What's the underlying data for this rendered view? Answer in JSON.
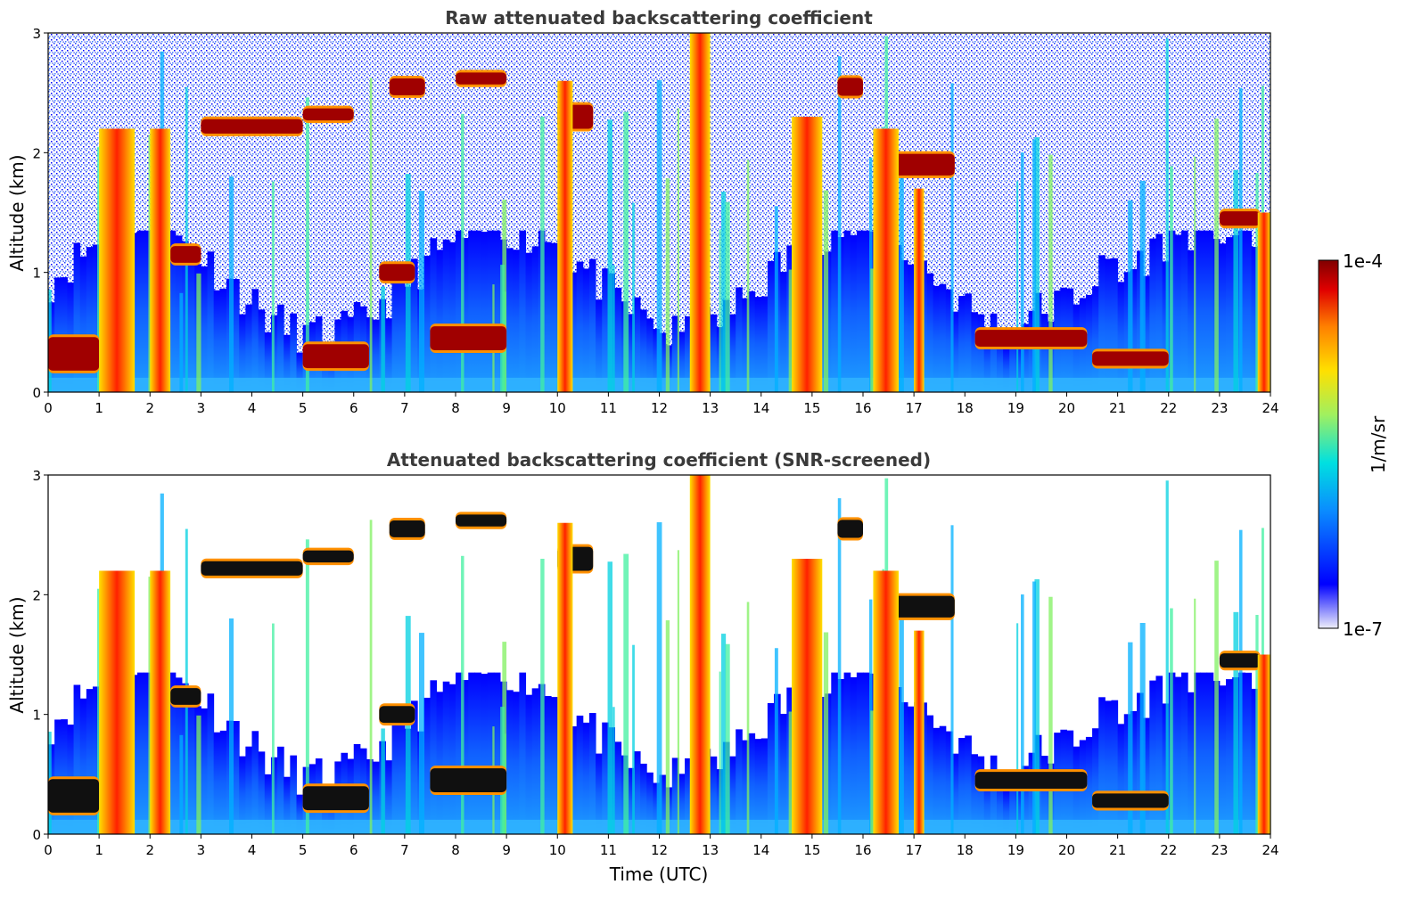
{
  "chart_data": [
    {
      "type": "heatmap",
      "title": "Raw attenuated backscattering coefficient",
      "xlabel": "",
      "ylabel": "Altitude (km)",
      "xlim": [
        0,
        24
      ],
      "ylim": [
        0,
        3
      ],
      "xticks": [
        "0",
        "1",
        "2",
        "3",
        "4",
        "5",
        "6",
        "7",
        "8",
        "9",
        "10",
        "11",
        "12",
        "13",
        "14",
        "15",
        "16",
        "17",
        "18",
        "19",
        "20",
        "21",
        "22",
        "23",
        "24"
      ],
      "yticks": [
        "0",
        "1",
        "2",
        "3"
      ],
      "layers": [
        {
          "x0": 3.0,
          "x1": 5.0,
          "y": 2.22,
          "h": 0.12
        },
        {
          "x0": 5.0,
          "x1": 6.0,
          "y": 2.32,
          "h": 0.1
        },
        {
          "x0": 6.7,
          "x1": 7.4,
          "y": 2.55,
          "h": 0.14
        },
        {
          "x0": 8.0,
          "x1": 9.0,
          "y": 2.62,
          "h": 0.1
        },
        {
          "x0": 2.4,
          "x1": 3.0,
          "y": 1.15,
          "h": 0.14
        },
        {
          "x0": 6.5,
          "x1": 7.2,
          "y": 1.0,
          "h": 0.14
        },
        {
          "x0": 0.0,
          "x1": 1.0,
          "y": 0.32,
          "h": 0.28
        },
        {
          "x0": 5.0,
          "x1": 6.3,
          "y": 0.3,
          "h": 0.2
        },
        {
          "x0": 7.5,
          "x1": 9.0,
          "y": 0.45,
          "h": 0.2
        },
        {
          "x0": 16.3,
          "x1": 17.8,
          "y": 1.9,
          "h": 0.18
        },
        {
          "x0": 18.2,
          "x1": 20.4,
          "y": 0.45,
          "h": 0.14
        },
        {
          "x0": 20.5,
          "x1": 22.0,
          "y": 0.28,
          "h": 0.12
        },
        {
          "x0": 23.0,
          "x1": 23.8,
          "y": 1.45,
          "h": 0.12
        },
        {
          "x0": 15.5,
          "x1": 16.0,
          "y": 2.55,
          "h": 0.15
        },
        {
          "x0": 10.0,
          "x1": 10.7,
          "y": 2.3,
          "h": 0.2
        }
      ],
      "columns": [
        {
          "x0": 1.0,
          "x1": 1.7,
          "top": 2.2
        },
        {
          "x0": 2.0,
          "x1": 2.4,
          "top": 2.2
        },
        {
          "x0": 14.6,
          "x1": 15.2,
          "top": 2.3
        },
        {
          "x0": 16.2,
          "x1": 16.7,
          "top": 2.2
        },
        {
          "x0": 17.0,
          "x1": 17.2,
          "top": 1.7
        },
        {
          "x0": 12.6,
          "x1": 13.0,
          "top": 3.0
        },
        {
          "x0": 23.75,
          "x1": 24.0,
          "top": 1.5
        },
        {
          "x0": 10.0,
          "x1": 10.3,
          "top": 2.6
        }
      ]
    },
    {
      "type": "heatmap",
      "title": "Attenuated backscattering coefficient (SNR-screened)",
      "xlabel": "Time (UTC)",
      "ylabel": "Altitude (km)",
      "xlim": [
        0,
        24
      ],
      "ylim": [
        0,
        3
      ],
      "xticks": [
        "0",
        "1",
        "2",
        "3",
        "4",
        "5",
        "6",
        "7",
        "8",
        "9",
        "10",
        "11",
        "12",
        "13",
        "14",
        "15",
        "16",
        "17",
        "18",
        "19",
        "20",
        "21",
        "22",
        "23",
        "24"
      ],
      "yticks": [
        "0",
        "1",
        "2",
        "3"
      ]
    }
  ],
  "colorbar": {
    "label": "1/m/sr",
    "min_label": "1e-7",
    "max_label": "1e-4",
    "colormap": [
      "#eeeefa",
      "#0000ff",
      "#0a8cff",
      "#00e0e0",
      "#a0f060",
      "#ffe000",
      "#ff8000",
      "#e00000",
      "#800000"
    ]
  }
}
